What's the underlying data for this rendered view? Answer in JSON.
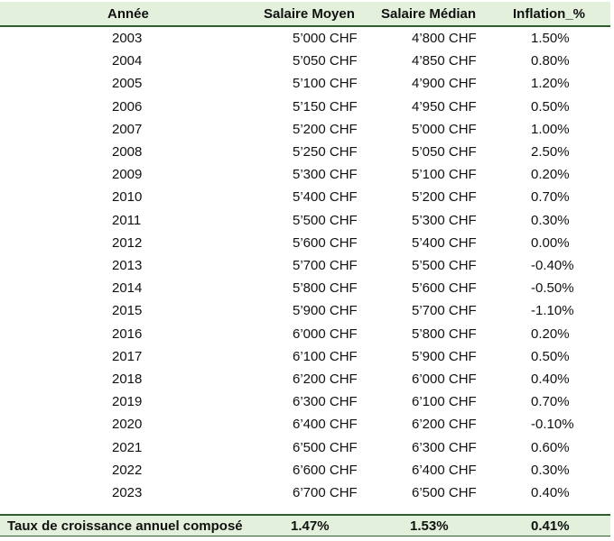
{
  "table": {
    "headers": {
      "year": "Année",
      "mean_salary": "Salaire Moyen",
      "median_salary": "Salaire Médian",
      "inflation": "Inflation_%"
    },
    "rows": [
      {
        "year": "2003",
        "mean": "5’000 CHF",
        "median": "4’800 CHF",
        "inflation": "1.50%"
      },
      {
        "year": "2004",
        "mean": "5’050 CHF",
        "median": "4’850 CHF",
        "inflation": "0.80%"
      },
      {
        "year": "2005",
        "mean": "5’100 CHF",
        "median": "4’900 CHF",
        "inflation": "1.20%"
      },
      {
        "year": "2006",
        "mean": "5’150 CHF",
        "median": "4’950 CHF",
        "inflation": "0.50%"
      },
      {
        "year": "2007",
        "mean": "5’200 CHF",
        "median": "5’000 CHF",
        "inflation": "1.00%"
      },
      {
        "year": "2008",
        "mean": "5’250 CHF",
        "median": "5’050 CHF",
        "inflation": "2.50%"
      },
      {
        "year": "2009",
        "mean": "5’300 CHF",
        "median": "5’100 CHF",
        "inflation": "0.20%"
      },
      {
        "year": "2010",
        "mean": "5’400 CHF",
        "median": "5’200 CHF",
        "inflation": "0.70%"
      },
      {
        "year": "2011",
        "mean": "5’500 CHF",
        "median": "5’300 CHF",
        "inflation": "0.30%"
      },
      {
        "year": "2012",
        "mean": "5’600 CHF",
        "median": "5’400 CHF",
        "inflation": "0.00%"
      },
      {
        "year": "2013",
        "mean": "5’700 CHF",
        "median": "5’500 CHF",
        "inflation": "-0.40%"
      },
      {
        "year": "2014",
        "mean": "5’800 CHF",
        "median": "5’600 CHF",
        "inflation": "-0.50%"
      },
      {
        "year": "2015",
        "mean": "5’900 CHF",
        "median": "5’700 CHF",
        "inflation": "-1.10%"
      },
      {
        "year": "2016",
        "mean": "6’000 CHF",
        "median": "5’800 CHF",
        "inflation": "0.20%"
      },
      {
        "year": "2017",
        "mean": "6’100 CHF",
        "median": "5’900 CHF",
        "inflation": "0.50%"
      },
      {
        "year": "2018",
        "mean": "6’200 CHF",
        "median": "6’000 CHF",
        "inflation": "0.40%"
      },
      {
        "year": "2019",
        "mean": "6’300 CHF",
        "median": "6’100 CHF",
        "inflation": "0.70%"
      },
      {
        "year": "2020",
        "mean": "6’400 CHF",
        "median": "6’200 CHF",
        "inflation": "-0.10%"
      },
      {
        "year": "2021",
        "mean": "6’500 CHF",
        "median": "6’300 CHF",
        "inflation": "0.60%"
      },
      {
        "year": "2022",
        "mean": "6’600 CHF",
        "median": "6’400 CHF",
        "inflation": "0.30%"
      },
      {
        "year": "2023",
        "mean": "6’700 CHF",
        "median": "6’500 CHF",
        "inflation": "0.40%"
      }
    ],
    "footer": {
      "label": "Taux de croissance annuel composé",
      "mean": "1.47%",
      "median": "1.53%",
      "inflation": "0.41%"
    }
  },
  "colors": {
    "header_background": "#e3f1dc",
    "rule": "#2f5f2f"
  }
}
